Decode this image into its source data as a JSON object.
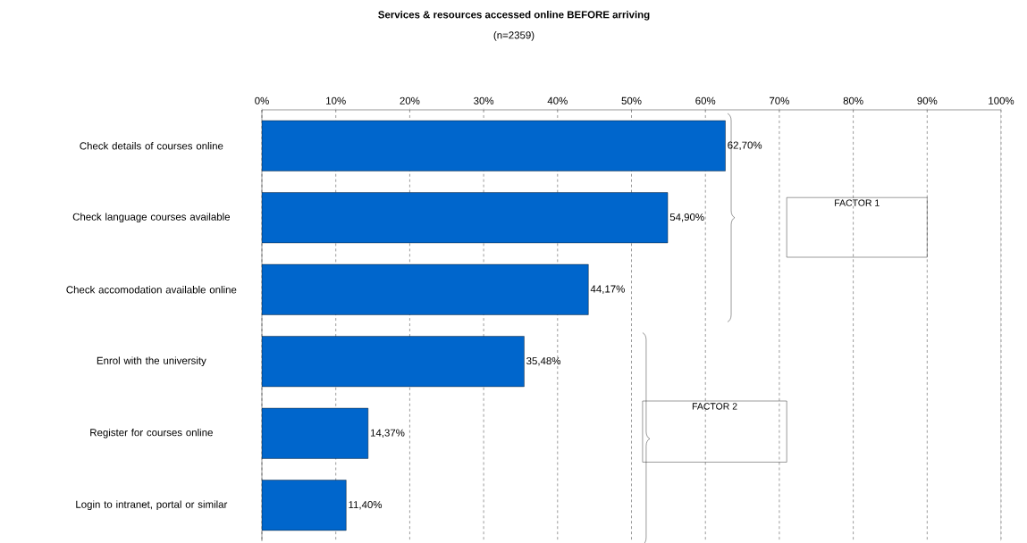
{
  "chart_data": {
    "type": "bar",
    "orientation": "horizontal",
    "title": "Services & resources accessed online BEFORE arriving",
    "subtitle": "(n=2359)",
    "categories": [
      "Check details of courses online",
      "Check language courses available",
      "Check accomodation available online",
      "Enrol with the university",
      "Register for courses online",
      "Login to intranet, portal or similar"
    ],
    "values": [
      62.7,
      54.9,
      44.17,
      35.48,
      14.37,
      11.4
    ],
    "value_labels": [
      "62,70%",
      "54,90%",
      "44,17%",
      "35,48%",
      "14,37%",
      "11,40%"
    ],
    "color": "#0066cc",
    "xlim": [
      0,
      100
    ],
    "xticks": [
      {
        "value": 0,
        "label": "0%"
      },
      {
        "value": 10,
        "label": "10%"
      },
      {
        "value": 20,
        "label": "20%"
      },
      {
        "value": 30,
        "label": "30%"
      },
      {
        "value": 40,
        "label": "40%"
      },
      {
        "value": 50,
        "label": "50%"
      },
      {
        "value": 60,
        "label": "60%"
      },
      {
        "value": 70,
        "label": "70%"
      },
      {
        "value": 80,
        "label": "80%"
      },
      {
        "value": 90,
        "label": "90%"
      },
      {
        "value": 100,
        "label": "100%"
      }
    ],
    "grid": "x",
    "annotations": [
      "FACTOR 1",
      "FACTOR 2"
    ]
  }
}
